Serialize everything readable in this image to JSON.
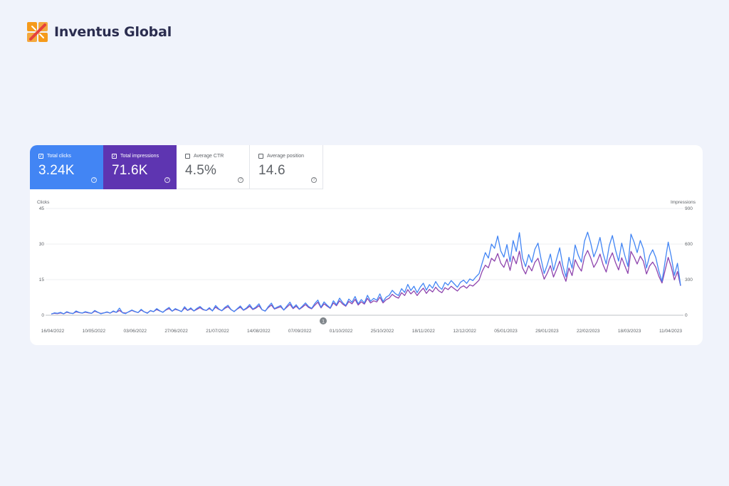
{
  "brand": {
    "name": "Inventus Global",
    "logo_icon": "interlocking-squares-icon",
    "colors": {
      "orange": "#f59a1b",
      "red": "#e5413b",
      "dark": "#2b2d4f"
    }
  },
  "metrics": [
    {
      "id": "clicks",
      "label": "Total clicks",
      "value": "3.24K",
      "checked": true,
      "color": "#4285f4"
    },
    {
      "id": "impressions",
      "label": "Total impressions",
      "value": "71.6K",
      "checked": true,
      "color": "#5e35b1"
    },
    {
      "id": "ctr",
      "label": "Average CTR",
      "value": "4.5%",
      "checked": false
    },
    {
      "id": "position",
      "label": "Average position",
      "value": "14.6",
      "checked": false
    }
  ],
  "annotation_marker": "1",
  "chart_data": {
    "type": "line",
    "xlabel": "",
    "y_left": {
      "label": "Clicks",
      "ticks": [
        0,
        15,
        30,
        45
      ],
      "range": [
        0,
        45
      ]
    },
    "y_right": {
      "label": "Impressions",
      "ticks": [
        0,
        300,
        600,
        900
      ],
      "range": [
        0,
        900
      ]
    },
    "x_ticks": [
      "16/04/2022",
      "10/05/2022",
      "03/06/2022",
      "27/06/2022",
      "21/07/2022",
      "14/08/2022",
      "07/09/2022",
      "01/10/2022",
      "25/10/2022",
      "18/11/2022",
      "12/12/2022",
      "05/01/2023",
      "29/01/2023",
      "22/02/2023",
      "18/03/2023",
      "11/04/2023"
    ],
    "x_range": [
      "16/04/2022",
      "14/04/2023"
    ],
    "grid": true,
    "series": [
      {
        "name": "Clicks",
        "axis": "left",
        "color": "#4285f4",
        "values": [
          0.5,
          1,
          0.8,
          1.2,
          0.6,
          1.5,
          1,
          0.7,
          1.8,
          1.2,
          0.9,
          1.5,
          1.1,
          0.8,
          2,
          1.3,
          0.6,
          1,
          1.4,
          0.9,
          1.8,
          1.2,
          3,
          1,
          0.7,
          1.5,
          2.2,
          1.6,
          1.1,
          2.5,
          1.4,
          0.8,
          2,
          1.5,
          2.8,
          1.9,
          1.2,
          2.4,
          3.3,
          1.7,
          2.8,
          2.2,
          1.5,
          3.6,
          2.1,
          3.1,
          1.8,
          2.9,
          3.7,
          2.5,
          2,
          3.2,
          1.8,
          4.1,
          2.7,
          1.9,
          3.3,
          4.2,
          2.4,
          1.5,
          2.8,
          3.9,
          2.2,
          3.1,
          4.5,
          2.6,
          3.4,
          4.8,
          2.3,
          1.7,
          3.6,
          5.1,
          2.8,
          3.5,
          4.1,
          2.2,
          3.9,
          5.5,
          3.1,
          4.4,
          2.6,
          3.8,
          5.2,
          3.7,
          2.9,
          4.9,
          6.4,
          3.4,
          5.6,
          4.2,
          3.1,
          6.1,
          4.4,
          7.2,
          5.3,
          4.1,
          6.8,
          5.5,
          7.9,
          4.8,
          6.6,
          5.2,
          8.4,
          5.9,
          7.1,
          6.3,
          9,
          5.8,
          7.6,
          8.4,
          10.5,
          9.1,
          8.3,
          11.2,
          9.6,
          13,
          10.4,
          12.2,
          9.5,
          11.8,
          13.5,
          10.6,
          12.9,
          11.4,
          14.2,
          12.1,
          10.9,
          13.8,
          12.7,
          14.6,
          13.2,
          11.8,
          13.9,
          14.8,
          13.4,
          15.3,
          14.6,
          16.2,
          17.5,
          22,
          26.4,
          24.1,
          30,
          28.2,
          33.4,
          27.1,
          24.5,
          29.8,
          22.6,
          31.5,
          26.9,
          34.8,
          24.2,
          20.5,
          25.6,
          22.3,
          27.8,
          30.4,
          23.7,
          17.6,
          21.2,
          25.8,
          18.9,
          23.6,
          28.4,
          21,
          16.2,
          24.4,
          19.8,
          29.6,
          25.3,
          22.4,
          31.2,
          35,
          30.5,
          24.6,
          27.9,
          32.8,
          26.1,
          21.6,
          29.3,
          33.6,
          27.5,
          22.8,
          30.4,
          25.2,
          20.6,
          34.2,
          30.8,
          26.4,
          31.5,
          28,
          19.9,
          25.1,
          27.6,
          24.3,
          18.5,
          14.3,
          22.6,
          30.8,
          24.7,
          16.8,
          21.9,
          12.5
        ]
      },
      {
        "name": "Impressions",
        "axis": "right",
        "color": "#8e44ad",
        "values": [
          10,
          16,
          14,
          20,
          12,
          25,
          18,
          15,
          28,
          22,
          18,
          26,
          20,
          16,
          34,
          24,
          15,
          20,
          26,
          18,
          32,
          24,
          40,
          22,
          18,
          28,
          40,
          30,
          22,
          44,
          28,
          20,
          38,
          30,
          48,
          36,
          26,
          44,
          56,
          34,
          50,
          42,
          32,
          60,
          40,
          54,
          36,
          50,
          64,
          46,
          40,
          56,
          38,
          68,
          50,
          38,
          58,
          72,
          46,
          32,
          52,
          68,
          42,
          56,
          76,
          48,
          60,
          80,
          46,
          36,
          64,
          86,
          52,
          62,
          72,
          44,
          68,
          92,
          56,
          76,
          50,
          68,
          90,
          66,
          54,
          84,
          110,
          62,
          96,
          76,
          58,
          104,
          80,
          122,
          94,
          76,
          116,
          96,
          134,
          86,
          114,
          94,
          142,
          104,
          122,
          112,
          152,
          104,
          130,
          144,
          176,
          156,
          144,
          190,
          166,
          216,
          180,
          206,
          166,
          200,
          228,
          184,
          218,
          196,
          236,
          206,
          190,
          232,
          216,
          244,
          224,
          204,
          234,
          248,
          228,
          256,
          246,
          270,
          296,
          370,
          422,
          400,
          480,
          456,
          520,
          440,
          404,
          474,
          378,
          498,
          434,
          540,
          400,
          348,
          418,
          374,
          446,
          480,
          392,
          304,
          354,
          418,
          322,
          386,
          456,
          354,
          286,
          398,
          334,
          468,
          412,
          372,
          492,
          546,
          484,
          404,
          448,
          516,
          426,
          364,
          468,
          526,
          444,
          382,
          484,
          418,
          352,
          538,
          490,
          432,
          498,
          456,
          348,
          416,
          448,
          404,
          328,
          272,
          378,
          488,
          408,
          298,
          368,
          248
        ]
      }
    ]
  }
}
